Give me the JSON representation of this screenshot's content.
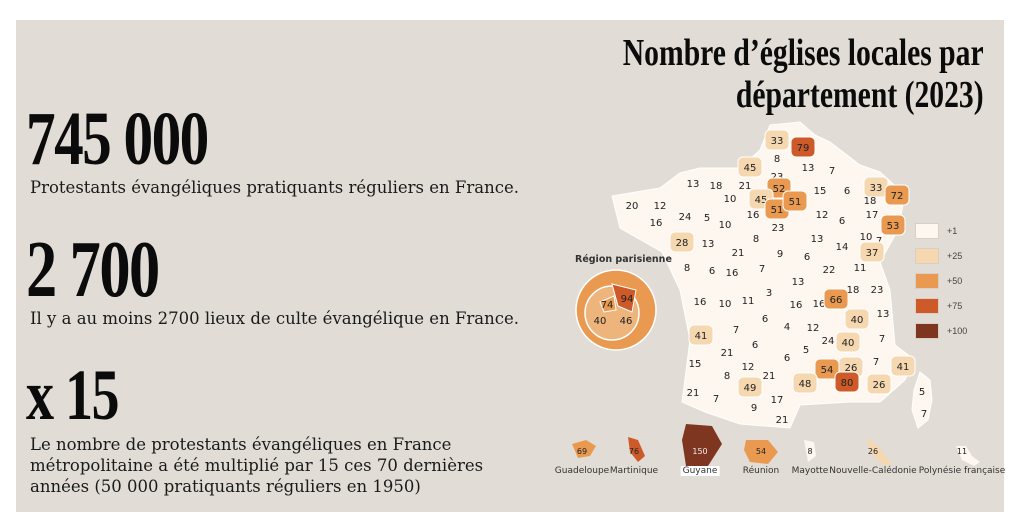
{
  "title": {
    "line1": "Nombre d’églises locales par",
    "line2": "département (2023)"
  },
  "stats": [
    {
      "value": "745 000",
      "text": "Protestants évangéliques pratiquants réguliers en France."
    },
    {
      "value": "2 700",
      "text": "Il y a au moins 2700 lieux de culte évangélique en France."
    },
    {
      "value": "x 15",
      "text_lines": [
        "Le nombre de protestants évangéliques en France",
        "métropolitaine a été multiplié par 15 ces 70 dernières",
        "années (50 000 pratiquants réguliers en 1950)"
      ]
    }
  ],
  "legend": [
    {
      "label": "+1",
      "color": "#fdf7f0"
    },
    {
      "label": "+25",
      "color": "#f5d7b0"
    },
    {
      "label": "+50",
      "color": "#e99a50"
    },
    {
      "label": "+75",
      "color": "#cd5a28"
    },
    {
      "label": "+100",
      "color": "#7f3620"
    }
  ],
  "paris_region": {
    "label": "Région parisienne",
    "values": [
      94,
      74,
      40,
      46
    ]
  },
  "departments": [
    33,
    79,
    8,
    13,
    7,
    45,
    13,
    18,
    21,
    23,
    52,
    45,
    51,
    51,
    15,
    6,
    33,
    72,
    20,
    12,
    10,
    16,
    24,
    5,
    10,
    16,
    23,
    12,
    6,
    18,
    17,
    53,
    10,
    7,
    28,
    13,
    8,
    21,
    9,
    6,
    14,
    37,
    13,
    8,
    6,
    16,
    7,
    22,
    11,
    13,
    16,
    10,
    11,
    3,
    16,
    16,
    66,
    18,
    23,
    40,
    13,
    41,
    7,
    6,
    4,
    12,
    24,
    40,
    7,
    21,
    6,
    6,
    5,
    15,
    8,
    12,
    21,
    54,
    26,
    7,
    41,
    21,
    7,
    49,
    48,
    80,
    26,
    17,
    9,
    21,
    5,
    7
  ],
  "overseas": [
    {
      "name": "Guadeloupe",
      "value": 69
    },
    {
      "name": "Martinique",
      "value": 76
    },
    {
      "name": "Guyane",
      "value": 150
    },
    {
      "name": "Réunion",
      "value": 54
    },
    {
      "name": "Mayotte",
      "value": 8
    },
    {
      "name": "Nouvelle-Calédonie",
      "value": 26
    },
    {
      "name": "Polynésie française",
      "value": 11
    }
  ]
}
